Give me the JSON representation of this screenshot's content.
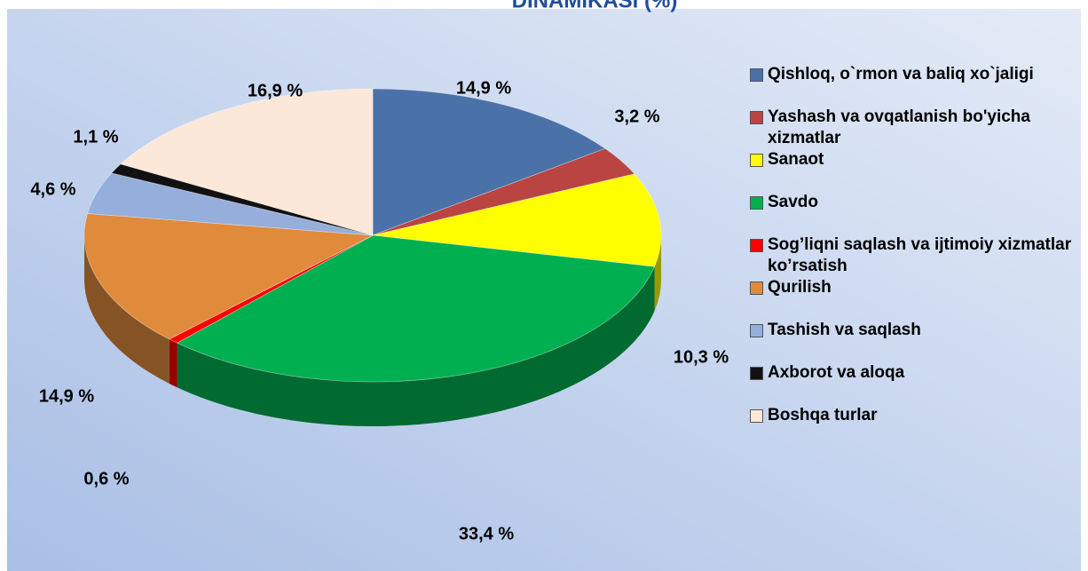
{
  "chart_data": {
    "type": "pie",
    "title": "DINAMIKASI (%)",
    "categories": [
      "Qishloq, o`rmon va baliq xo`jaligi",
      "Yashash va ovqatlanish bo'yicha xizmatlar",
      "Sanaot",
      "Savdo",
      "Sog’liqni saqlash va ijtimoiy xizmatlar ko’rsatish",
      "Qurilish",
      "Tashish va saqlash",
      "Axborot va aloqa",
      "Boshqa  turlar"
    ],
    "values": [
      14.9,
      3.2,
      10.3,
      33.4,
      0.6,
      14.9,
      4.6,
      1.1,
      16.9
    ],
    "value_labels": [
      "14,9 %",
      "3,2 %",
      "10,3 %",
      "33,4 %",
      "0,6 %",
      "14,9 %",
      "4,6 %",
      "1,1 %",
      "16,9 %"
    ],
    "colors": [
      "#4a72a8",
      "#b94442",
      "#ffff00",
      "#00b050",
      "#ff0000",
      "#e08a3c",
      "#95aedb",
      "#111111",
      "#fbe8d8"
    ],
    "legend": "right"
  }
}
